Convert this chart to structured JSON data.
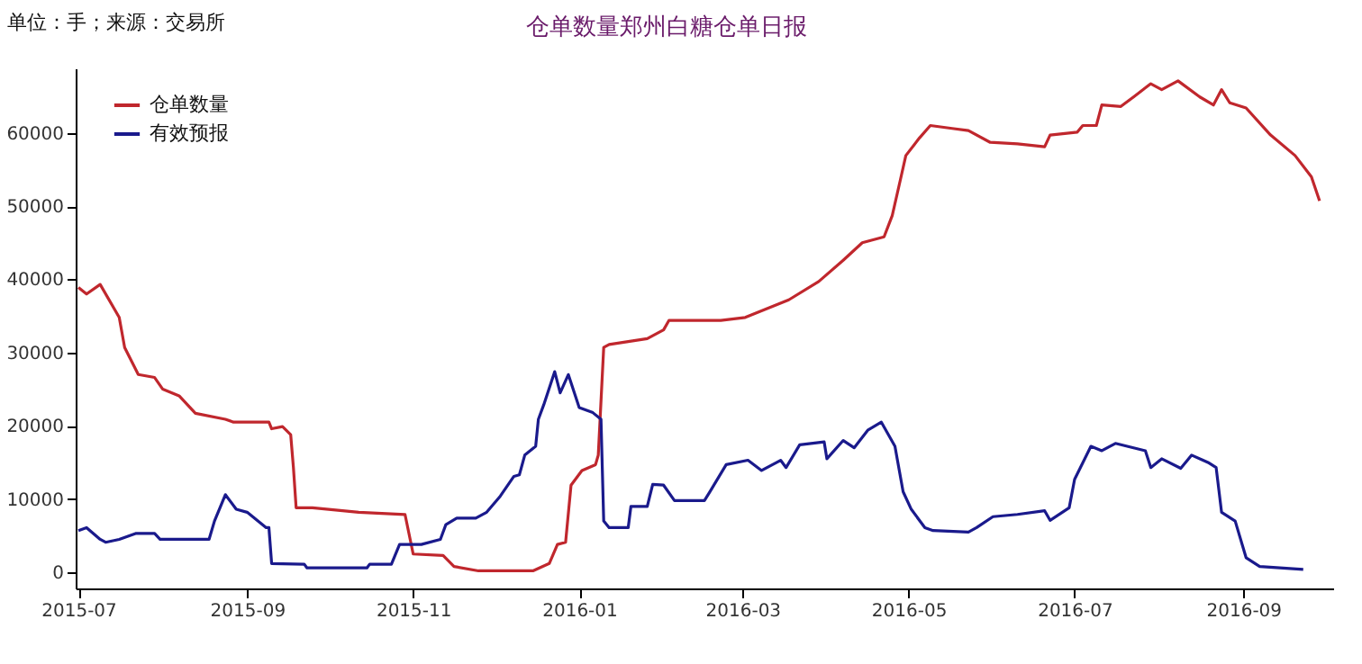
{
  "chart_data": {
    "type": "line",
    "title": "仓单数量郑州白糖仓单日报",
    "annotations": [
      "单位：手；来源：交易所"
    ],
    "xlim": [
      "2015-06-30",
      "2016-10-04"
    ],
    "xticks": [
      "2015-07",
      "2015-09",
      "2015-11",
      "2016-01",
      "2016-03",
      "2016-05",
      "2016-07",
      "2016-09"
    ],
    "ylim": [
      -2200,
      68800
    ],
    "yticks": [
      0,
      10000,
      20000,
      30000,
      40000,
      50000,
      60000
    ],
    "legend": "top left",
    "series": [
      {
        "name": "仓单数量",
        "color": "#c0272d",
        "x": [
          "2015-07-01",
          "2015-07-04",
          "2015-07-09",
          "2015-07-16",
          "2015-07-18",
          "2015-07-23",
          "2015-07-29",
          "2015-08-01",
          "2015-08-07",
          "2015-08-11",
          "2015-08-13",
          "2015-08-24",
          "2015-08-27",
          "2015-09-09",
          "2015-09-10",
          "2015-09-14",
          "2015-09-17",
          "2015-09-18",
          "2015-09-19",
          "2015-09-25",
          "2015-10-12",
          "2015-10-29",
          "2015-11-01",
          "2015-11-12",
          "2015-11-16",
          "2015-11-25",
          "2015-12-15",
          "2015-12-21",
          "2015-12-24",
          "2015-12-27",
          "2015-12-29",
          "2016-01-02",
          "2016-01-07",
          "2016-01-08",
          "2016-01-10",
          "2016-01-12",
          "2016-01-19",
          "2016-01-26",
          "2016-02-01",
          "2016-02-03",
          "2016-02-22",
          "2016-03-02",
          "2016-03-18",
          "2016-03-29",
          "2016-04-07",
          "2016-04-14",
          "2016-04-22",
          "2016-04-25",
          "2016-04-28",
          "2016-04-30",
          "2016-05-05",
          "2016-05-09",
          "2016-05-17",
          "2016-05-23",
          "2016-05-31",
          "2016-06-10",
          "2016-06-20",
          "2016-06-22",
          "2016-07-02",
          "2016-07-04",
          "2016-07-09",
          "2016-07-11",
          "2016-07-18",
          "2016-07-23",
          "2016-07-29",
          "2016-08-02",
          "2016-08-08",
          "2016-08-16",
          "2016-08-21",
          "2016-08-24",
          "2016-08-27",
          "2016-09-02",
          "2016-09-11",
          "2016-09-20",
          "2016-09-26",
          "2016-09-29"
        ],
        "values": [
          38900,
          38000,
          39300,
          34800,
          30700,
          27000,
          26600,
          25000,
          24100,
          22500,
          21700,
          20900,
          20500,
          20500,
          19600,
          19900,
          18800,
          14300,
          8800,
          8800,
          8200,
          7900,
          2500,
          2300,
          800,
          200,
          200,
          1200,
          3800,
          4100,
          11900,
          13900,
          14700,
          16000,
          30700,
          31100,
          31500,
          31900,
          33100,
          34400,
          34400,
          34800,
          37200,
          39700,
          42600,
          45000,
          45800,
          48700,
          53600,
          56900,
          59300,
          61000,
          60600,
          60300,
          58700,
          58500,
          58100,
          59700,
          60100,
          61000,
          61000,
          63800,
          63600,
          65000,
          66700,
          65900,
          67100,
          64900,
          63800,
          65900,
          64100,
          63400,
          59700,
          56900,
          54000,
          50700
        ]
      },
      {
        "name": "有效预报",
        "color": "#1a1a8c",
        "x": [
          "2015-07-01",
          "2015-07-04",
          "2015-07-09",
          "2015-07-11",
          "2015-07-16",
          "2015-07-22",
          "2015-07-29",
          "2015-07-31",
          "2015-08-18",
          "2015-08-20",
          "2015-08-24",
          "2015-08-28",
          "2015-09-01",
          "2015-09-08",
          "2015-09-09",
          "2015-09-10",
          "2015-09-22",
          "2015-09-23",
          "2015-10-15",
          "2015-10-16",
          "2015-10-24",
          "2015-10-27",
          "2015-11-04",
          "2015-11-11",
          "2015-11-13",
          "2015-11-17",
          "2015-11-24",
          "2015-11-26",
          "2015-11-28",
          "2015-12-03",
          "2015-12-08",
          "2015-12-10",
          "2015-12-12",
          "2015-12-16",
          "2015-12-17",
          "2015-12-19",
          "2015-12-23",
          "2015-12-25",
          "2015-12-28",
          "2016-01-01",
          "2016-01-06",
          "2016-01-09",
          "2016-01-10",
          "2016-01-12",
          "2016-01-19",
          "2016-01-20",
          "2016-01-26",
          "2016-01-28",
          "2016-02-01",
          "2016-02-05",
          "2016-02-16",
          "2016-02-18",
          "2016-02-24",
          "2016-03-03",
          "2016-03-08",
          "2016-03-15",
          "2016-03-17",
          "2016-03-22",
          "2016-03-31",
          "2016-04-01",
          "2016-04-07",
          "2016-04-11",
          "2016-04-16",
          "2016-04-21",
          "2016-04-26",
          "2016-04-29",
          "2016-05-02",
          "2016-05-07",
          "2016-05-10",
          "2016-05-23",
          "2016-05-26",
          "2016-06-01",
          "2016-06-10",
          "2016-06-20",
          "2016-06-22",
          "2016-06-29",
          "2016-07-01",
          "2016-07-07",
          "2016-07-11",
          "2016-07-16",
          "2016-07-27",
          "2016-07-29",
          "2016-08-02",
          "2016-08-09",
          "2016-08-13",
          "2016-08-19",
          "2016-08-22",
          "2016-08-24",
          "2016-08-29",
          "2016-09-02",
          "2016-09-07",
          "2016-09-23"
        ],
        "values": [
          5700,
          6100,
          4500,
          4100,
          4500,
          5300,
          5300,
          4500,
          4500,
          7000,
          10600,
          8600,
          8200,
          6100,
          6100,
          1200,
          1100,
          600,
          600,
          1100,
          1100,
          3800,
          3800,
          4500,
          6500,
          7400,
          7400,
          7800,
          8200,
          10400,
          13100,
          13300,
          16000,
          17200,
          20900,
          22900,
          27400,
          24500,
          27000,
          22500,
          21800,
          20900,
          7000,
          6100,
          6100,
          9000,
          9000,
          12000,
          11900,
          9800,
          9800,
          11000,
          14700,
          15300,
          13900,
          15300,
          14300,
          17400,
          17800,
          15500,
          18000,
          17000,
          19400,
          20500,
          17200,
          11000,
          8600,
          6100,
          5700,
          5500,
          6100,
          7600,
          7900,
          8400,
          7100,
          8800,
          12700,
          17200,
          16600,
          17600,
          16600,
          14300,
          15500,
          14200,
          16000,
          15000,
          14300,
          8200,
          7000,
          2000,
          800,
          400
        ]
      }
    ]
  }
}
